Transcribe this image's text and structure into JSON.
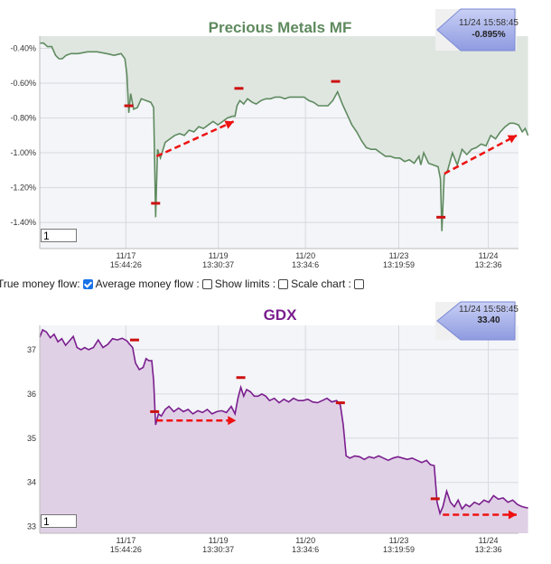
{
  "controls": {
    "true_money_flow_label": "True money flow:",
    "true_money_flow_checked": true,
    "average_money_flow_label": "Average money flow :",
    "average_money_flow_checked": false,
    "show_limits_label": "Show limits :",
    "show_limits_checked": false,
    "scale_chart_label": "Scale chart :",
    "scale_chart_checked": false
  },
  "colors": {
    "top_line": "#5f8a5f",
    "top_fill": "#dfe6e0",
    "bottom_line": "#7a1e8e",
    "bottom_fill": "#e0d0e6",
    "marker": "#cc1111",
    "arrow": "#ee1111",
    "badge": "#9aa7e6"
  },
  "chart_data": [
    {
      "type": "line",
      "title": "Precious Metals MF",
      "badge": {
        "time": "11/24 15:58:45",
        "value": "-0.895%"
      },
      "page_input": "1",
      "ylim": [
        -1.55,
        -0.33
      ],
      "yticks": [
        -0.4,
        -0.6,
        -0.8,
        -1.0,
        -1.2,
        -1.4
      ],
      "ytick_labels": [
        "-0.40%",
        "-0.60%",
        "-0.80%",
        "-1.00%",
        "-1.20%",
        "-1.40%"
      ],
      "xticks": [
        {
          "x": 0.18,
          "date": "11/17",
          "time": "15:44:26"
        },
        {
          "x": 0.373,
          "date": "11/19",
          "time": "13:30:37"
        },
        {
          "x": 0.555,
          "date": "11/20",
          "time": "13:34:6"
        },
        {
          "x": 0.75,
          "date": "11/23",
          "time": "13:19:59"
        },
        {
          "x": 0.937,
          "date": "11/24",
          "time": "13:2:36"
        }
      ],
      "grid": true,
      "series": [
        {
          "points": [
            [
              0,
              -0.37
            ],
            [
              0.008,
              -0.37
            ],
            [
              0.016,
              -0.39
            ],
            [
              0.025,
              -0.39
            ],
            [
              0.033,
              -0.44
            ],
            [
              0.04,
              -0.46
            ],
            [
              0.047,
              -0.46
            ],
            [
              0.055,
              -0.44
            ],
            [
              0.065,
              -0.43
            ],
            [
              0.08,
              -0.43
            ],
            [
              0.1,
              -0.42
            ],
            [
              0.12,
              -0.42
            ],
            [
              0.14,
              -0.43
            ],
            [
              0.155,
              -0.44
            ],
            [
              0.17,
              -0.43
            ],
            [
              0.178,
              -0.46
            ],
            [
              0.182,
              -0.55
            ],
            [
              0.186,
              -0.77
            ],
            [
              0.19,
              -0.66
            ],
            [
              0.196,
              -0.75
            ],
            [
              0.204,
              -0.74
            ],
            [
              0.212,
              -0.69
            ],
            [
              0.222,
              -0.7
            ],
            [
              0.232,
              -0.71
            ],
            [
              0.238,
              -0.74
            ],
            [
              0.242,
              -1.37
            ],
            [
              0.246,
              -0.98
            ],
            [
              0.252,
              -1.03
            ],
            [
              0.262,
              -0.94
            ],
            [
              0.272,
              -0.92
            ],
            [
              0.282,
              -0.9
            ],
            [
              0.292,
              -0.89
            ],
            [
              0.302,
              -0.9
            ],
            [
              0.312,
              -0.87
            ],
            [
              0.322,
              -0.88
            ],
            [
              0.332,
              -0.85
            ],
            [
              0.342,
              -0.86
            ],
            [
              0.352,
              -0.84
            ],
            [
              0.362,
              -0.82
            ],
            [
              0.372,
              -0.84
            ],
            [
              0.382,
              -0.82
            ],
            [
              0.392,
              -0.8
            ],
            [
              0.402,
              -0.79
            ],
            [
              0.408,
              -0.79
            ],
            [
              0.412,
              -0.73
            ],
            [
              0.418,
              -0.7
            ],
            [
              0.426,
              -0.72
            ],
            [
              0.434,
              -0.69
            ],
            [
              0.444,
              -0.71
            ],
            [
              0.452,
              -0.72
            ],
            [
              0.462,
              -0.7
            ],
            [
              0.472,
              -0.69
            ],
            [
              0.482,
              -0.69
            ],
            [
              0.492,
              -0.68
            ],
            [
              0.502,
              -0.68
            ],
            [
              0.512,
              -0.69
            ],
            [
              0.522,
              -0.68
            ],
            [
              0.532,
              -0.68
            ],
            [
              0.542,
              -0.68
            ],
            [
              0.552,
              -0.68
            ],
            [
              0.562,
              -0.7
            ],
            [
              0.572,
              -0.71
            ],
            [
              0.582,
              -0.73
            ],
            [
              0.592,
              -0.73
            ],
            [
              0.602,
              -0.73
            ],
            [
              0.612,
              -0.7
            ],
            [
              0.622,
              -0.65
            ],
            [
              0.632,
              -0.72
            ],
            [
              0.642,
              -0.78
            ],
            [
              0.652,
              -0.84
            ],
            [
              0.662,
              -0.88
            ],
            [
              0.672,
              -0.93
            ],
            [
              0.682,
              -0.97
            ],
            [
              0.692,
              -0.98
            ],
            [
              0.702,
              -0.98
            ],
            [
              0.712,
              -1.0
            ],
            [
              0.722,
              -1.02
            ],
            [
              0.732,
              -1.02
            ],
            [
              0.742,
              -1.03
            ],
            [
              0.752,
              -1.03
            ],
            [
              0.762,
              -1.05
            ],
            [
              0.772,
              -1.04
            ],
            [
              0.782,
              -1.06
            ],
            [
              0.792,
              -1.02
            ],
            [
              0.796,
              -1.07
            ],
            [
              0.802,
              -1.0
            ],
            [
              0.812,
              -1.06
            ],
            [
              0.822,
              -1.07
            ],
            [
              0.832,
              -1.08
            ],
            [
              0.837,
              -1.15
            ],
            [
              0.84,
              -1.45
            ],
            [
              0.845,
              -1.13
            ],
            [
              0.852,
              -1.1
            ],
            [
              0.862,
              -1.0
            ],
            [
              0.872,
              -1.07
            ],
            [
              0.882,
              -0.98
            ],
            [
              0.892,
              -1.01
            ],
            [
              0.902,
              -0.98
            ],
            [
              0.912,
              -0.97
            ],
            [
              0.922,
              -0.95
            ],
            [
              0.932,
              -0.96
            ],
            [
              0.942,
              -0.9
            ],
            [
              0.952,
              -0.92
            ],
            [
              0.962,
              -0.88
            ],
            [
              0.972,
              -0.85
            ],
            [
              0.982,
              -0.83
            ],
            [
              0.99,
              -0.83
            ],
            [
              1.0,
              -0.84
            ],
            [
              1.008,
              -0.88
            ],
            [
              1.014,
              -0.86
            ],
            [
              1.02,
              -0.9
            ]
          ]
        }
      ],
      "markers": [
        [
          0.186,
          -0.73
        ],
        [
          0.242,
          -1.29
        ],
        [
          0.416,
          -0.63
        ],
        [
          0.618,
          -0.59
        ],
        [
          0.838,
          -1.37
        ]
      ],
      "arrows": [
        {
          "from": [
            0.244,
            -1.02
          ],
          "to": [
            0.405,
            -0.82
          ]
        },
        {
          "from": [
            0.845,
            -1.12
          ],
          "to": [
            1.012,
            -0.9
          ]
        }
      ]
    },
    {
      "type": "area",
      "title": "GDX",
      "badge": {
        "time": "11/24 15:58:45",
        "value": "33.40"
      },
      "page_input": "1",
      "ylim": [
        32.85,
        37.55
      ],
      "yticks": [
        37,
        36,
        35,
        34,
        33
      ],
      "ytick_labels": [
        "37",
        "36",
        "35",
        "34",
        "33"
      ],
      "xticks": [
        {
          "x": 0.18,
          "date": "11/17",
          "time": "15:44:26"
        },
        {
          "x": 0.373,
          "date": "11/19",
          "time": "13:30:37"
        },
        {
          "x": 0.555,
          "date": "11/20",
          "time": "13:34:6"
        },
        {
          "x": 0.75,
          "date": "11/23",
          "time": "13:19:59"
        },
        {
          "x": 0.937,
          "date": "11/24",
          "time": "13:2:36"
        }
      ],
      "grid": true,
      "series": [
        {
          "points": [
            [
              0,
              37.28
            ],
            [
              0.006,
              37.45
            ],
            [
              0.014,
              37.4
            ],
            [
              0.022,
              37.27
            ],
            [
              0.03,
              37.35
            ],
            [
              0.038,
              37.18
            ],
            [
              0.046,
              37.25
            ],
            [
              0.054,
              37.1
            ],
            [
              0.062,
              37.2
            ],
            [
              0.07,
              37.3
            ],
            [
              0.078,
              37.05
            ],
            [
              0.086,
              37.0
            ],
            [
              0.094,
              37.05
            ],
            [
              0.102,
              37.0
            ],
            [
              0.112,
              37.05
            ],
            [
              0.122,
              37.22
            ],
            [
              0.132,
              37.05
            ],
            [
              0.142,
              37.12
            ],
            [
              0.152,
              37.25
            ],
            [
              0.162,
              37.22
            ],
            [
              0.172,
              37.26
            ],
            [
              0.182,
              37.2
            ],
            [
              0.188,
              37.12
            ],
            [
              0.194,
              37.05
            ],
            [
              0.2,
              36.7
            ],
            [
              0.208,
              36.55
            ],
            [
              0.216,
              36.6
            ],
            [
              0.222,
              36.8
            ],
            [
              0.228,
              36.75
            ],
            [
              0.234,
              36.75
            ],
            [
              0.238,
              36.3
            ],
            [
              0.242,
              35.3
            ],
            [
              0.248,
              35.55
            ],
            [
              0.254,
              35.5
            ],
            [
              0.262,
              35.65
            ],
            [
              0.27,
              35.72
            ],
            [
              0.28,
              35.6
            ],
            [
              0.29,
              35.68
            ],
            [
              0.3,
              35.6
            ],
            [
              0.31,
              35.65
            ],
            [
              0.32,
              35.55
            ],
            [
              0.33,
              35.62
            ],
            [
              0.34,
              35.58
            ],
            [
              0.35,
              35.65
            ],
            [
              0.36,
              35.55
            ],
            [
              0.37,
              35.6
            ],
            [
              0.38,
              35.62
            ],
            [
              0.39,
              35.58
            ],
            [
              0.4,
              35.72
            ],
            [
              0.408,
              35.55
            ],
            [
              0.414,
              35.9
            ],
            [
              0.42,
              36.15
            ],
            [
              0.426,
              35.95
            ],
            [
              0.432,
              36.1
            ],
            [
              0.44,
              36.05
            ],
            [
              0.448,
              35.95
            ],
            [
              0.456,
              35.95
            ],
            [
              0.464,
              36.0
            ],
            [
              0.472,
              35.95
            ],
            [
              0.48,
              35.85
            ],
            [
              0.49,
              35.9
            ],
            [
              0.5,
              35.8
            ],
            [
              0.51,
              35.88
            ],
            [
              0.52,
              35.82
            ],
            [
              0.53,
              35.9
            ],
            [
              0.54,
              35.85
            ],
            [
              0.55,
              35.85
            ],
            [
              0.56,
              35.88
            ],
            [
              0.57,
              35.82
            ],
            [
              0.58,
              35.8
            ],
            [
              0.59,
              35.85
            ],
            [
              0.6,
              35.9
            ],
            [
              0.61,
              35.82
            ],
            [
              0.62,
              35.85
            ],
            [
              0.628,
              35.75
            ],
            [
              0.634,
              35.3
            ],
            [
              0.64,
              34.6
            ],
            [
              0.648,
              34.55
            ],
            [
              0.658,
              34.6
            ],
            [
              0.668,
              34.58
            ],
            [
              0.678,
              34.52
            ],
            [
              0.688,
              34.58
            ],
            [
              0.698,
              34.55
            ],
            [
              0.708,
              34.6
            ],
            [
              0.718,
              34.55
            ],
            [
              0.728,
              34.5
            ],
            [
              0.738,
              34.55
            ],
            [
              0.748,
              34.58
            ],
            [
              0.758,
              34.55
            ],
            [
              0.768,
              34.52
            ],
            [
              0.778,
              34.55
            ],
            [
              0.788,
              34.5
            ],
            [
              0.798,
              34.45
            ],
            [
              0.808,
              34.5
            ],
            [
              0.816,
              34.4
            ],
            [
              0.824,
              34.38
            ],
            [
              0.83,
              33.55
            ],
            [
              0.836,
              33.3
            ],
            [
              0.842,
              33.45
            ],
            [
              0.85,
              33.8
            ],
            [
              0.858,
              33.55
            ],
            [
              0.866,
              33.45
            ],
            [
              0.874,
              33.6
            ],
            [
              0.882,
              33.4
            ],
            [
              0.89,
              33.5
            ],
            [
              0.898,
              33.45
            ],
            [
              0.908,
              33.55
            ],
            [
              0.918,
              33.5
            ],
            [
              0.928,
              33.6
            ],
            [
              0.938,
              33.55
            ],
            [
              0.948,
              33.7
            ],
            [
              0.958,
              33.62
            ],
            [
              0.968,
              33.65
            ],
            [
              0.978,
              33.55
            ],
            [
              0.988,
              33.6
            ],
            [
              0.998,
              33.5
            ],
            [
              1.008,
              33.45
            ],
            [
              1.02,
              33.42
            ]
          ]
        }
      ],
      "markers": [
        [
          0.198,
          37.22
        ],
        [
          0.24,
          35.6
        ],
        [
          0.42,
          36.37
        ],
        [
          0.628,
          35.8
        ],
        [
          0.826,
          33.63
        ]
      ],
      "arrows": [
        {
          "from": [
            0.244,
            35.4
          ],
          "to": [
            0.41,
            35.4
          ]
        },
        {
          "from": [
            0.842,
            33.27
          ],
          "to": [
            1.02,
            33.27
          ]
        }
      ]
    }
  ]
}
